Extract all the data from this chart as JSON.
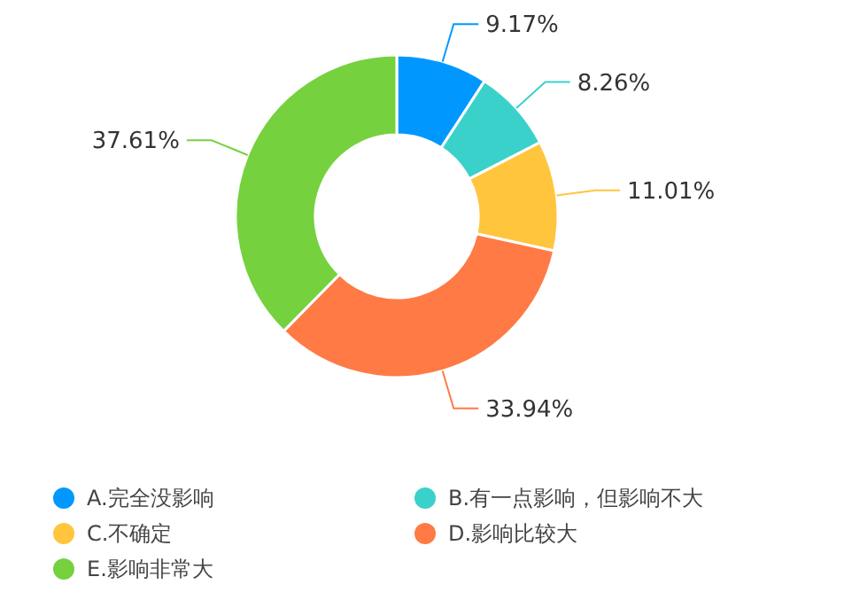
{
  "chart_data": {
    "type": "donut",
    "categories": [
      "A.完全没影响",
      "B.有一点影响，但影响不大",
      "C.不确定",
      "D.影响比较大",
      "E.影响非常大"
    ],
    "values": [
      9.17,
      8.26,
      11.01,
      33.94,
      37.61
    ],
    "colors": [
      "#0098ff",
      "#3bd1cb",
      "#ffc53d",
      "#ff7a45",
      "#76d13f"
    ],
    "value_labels": [
      "9.17%",
      "8.26%",
      "11.01%",
      "33.94%",
      "37.61%"
    ],
    "legend": "bottom"
  }
}
